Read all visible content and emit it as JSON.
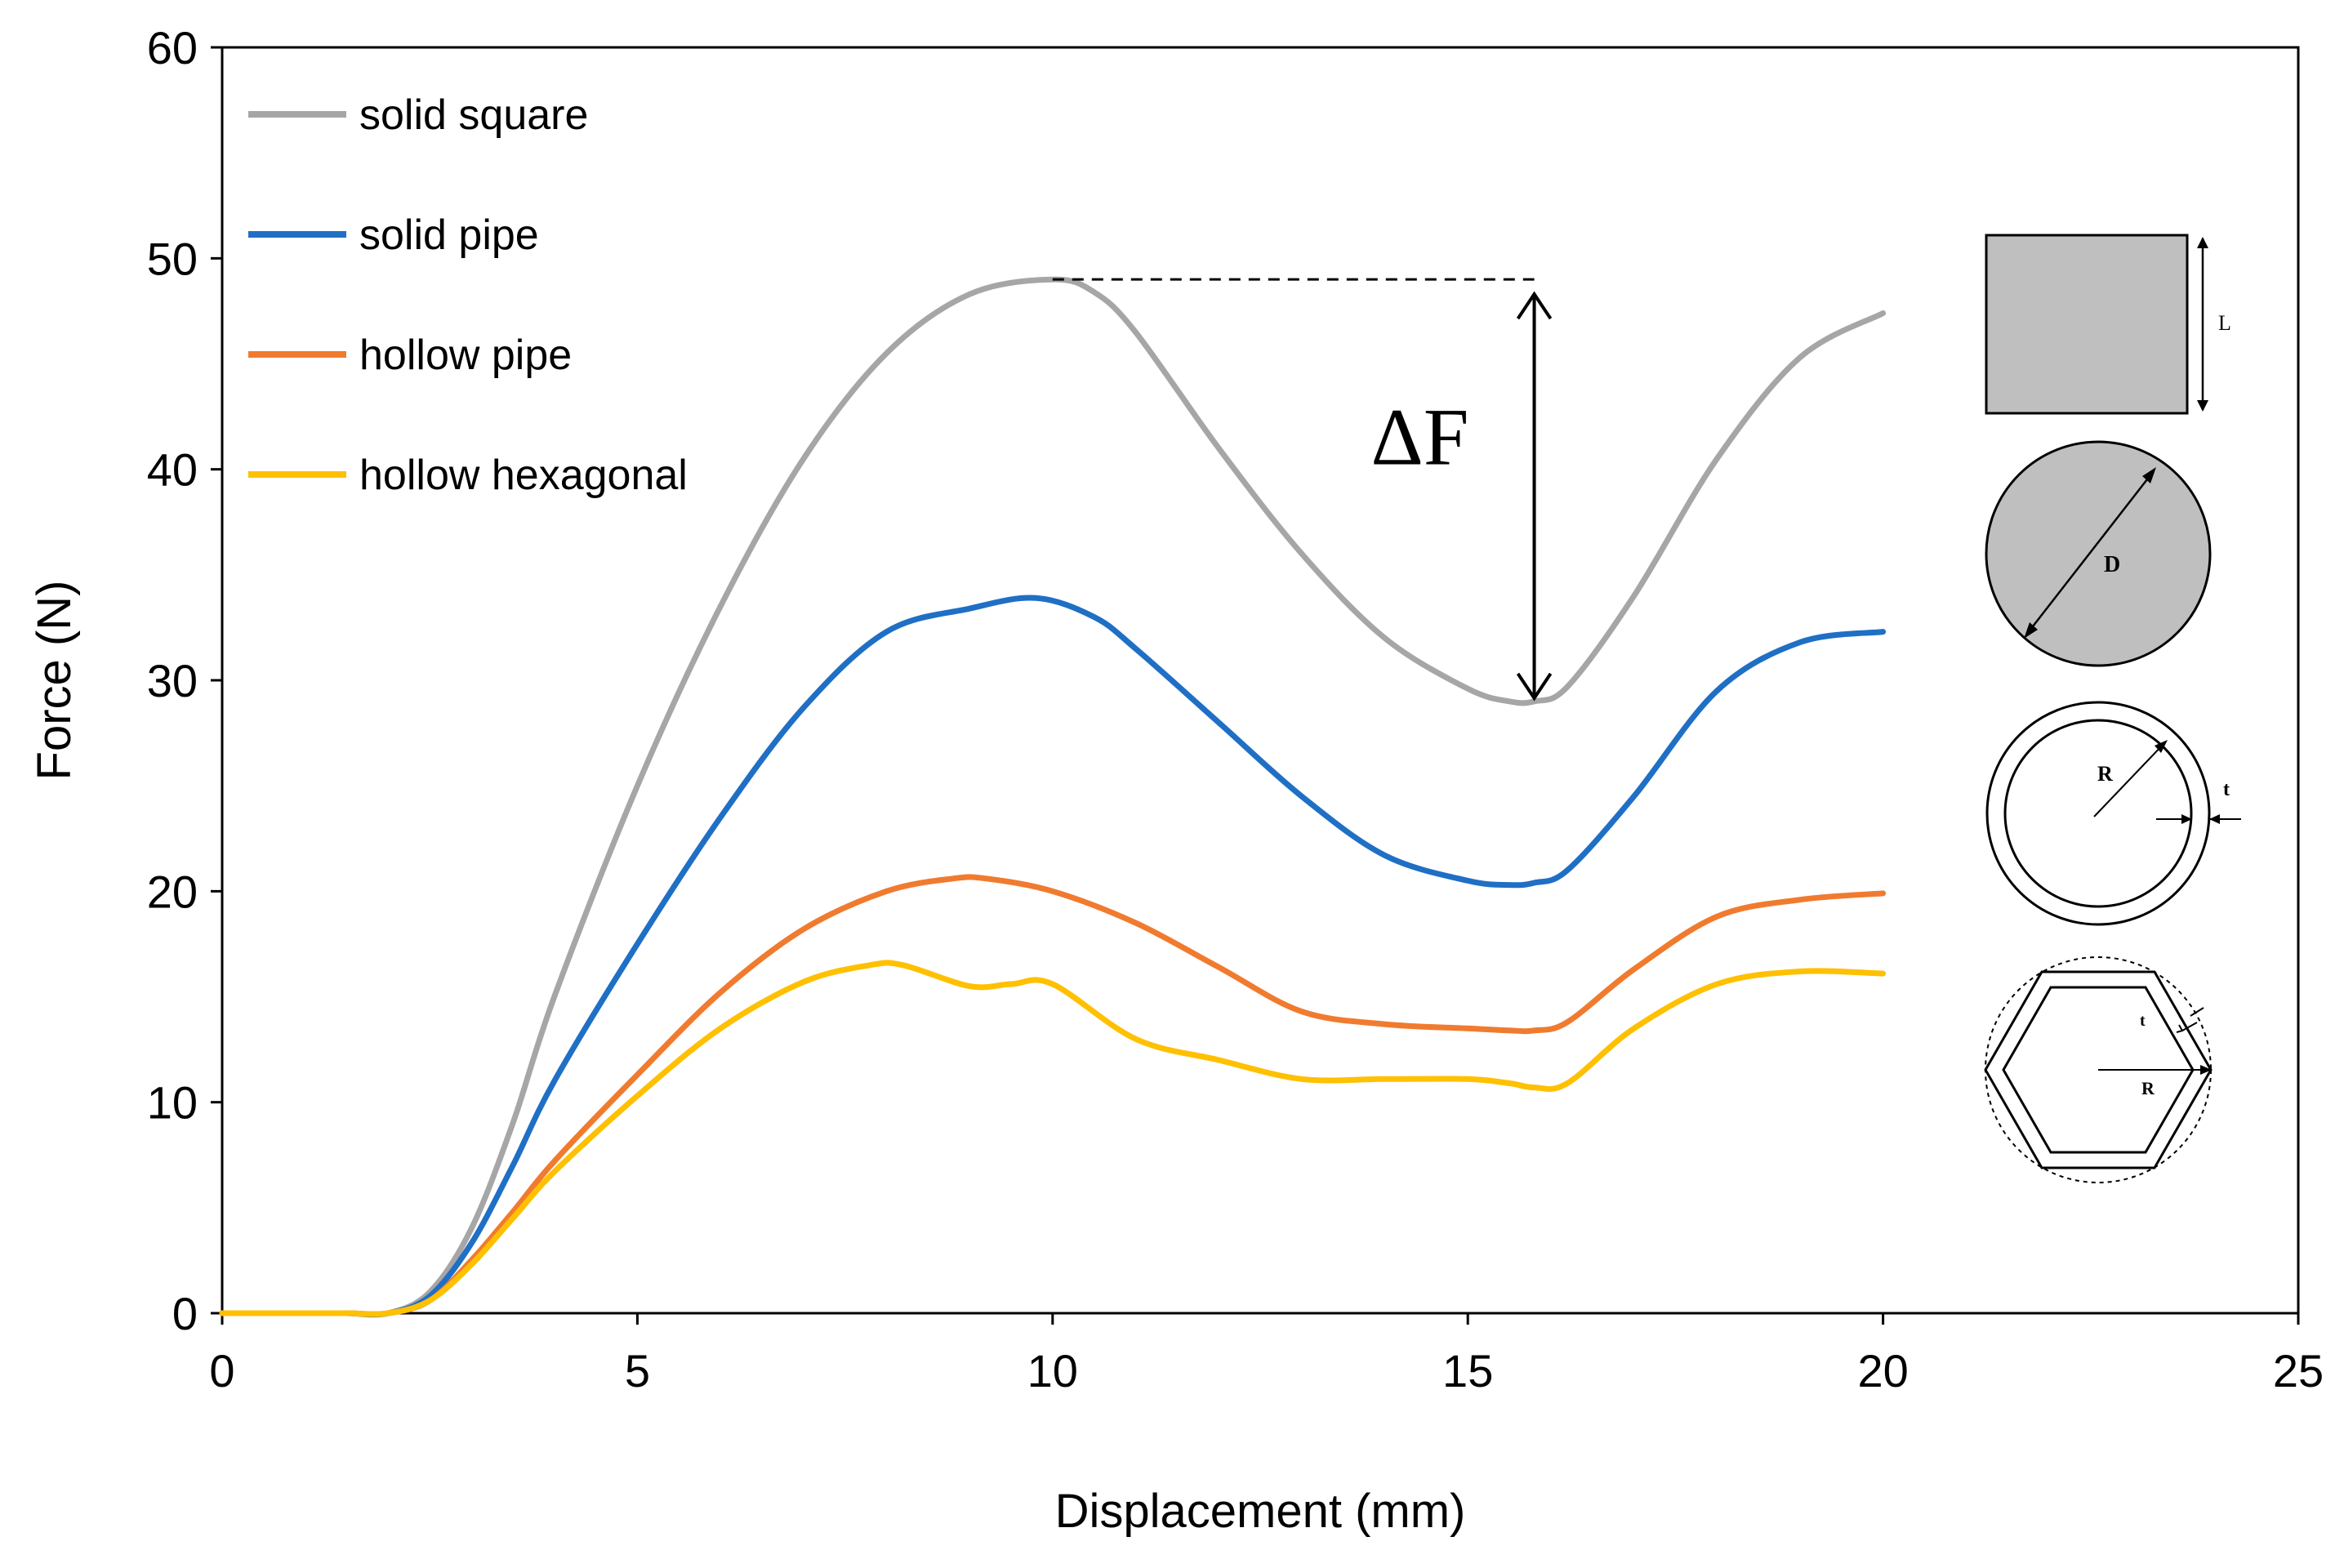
{
  "chart_data": {
    "type": "line",
    "title": "",
    "xlabel": "Displacement (mm)",
    "ylabel": "Force (N)",
    "xlim": [
      0,
      25
    ],
    "ylim": [
      0,
      60
    ],
    "xticks": [
      0,
      5,
      10,
      15,
      20,
      25
    ],
    "yticks": [
      0,
      10,
      20,
      30,
      40,
      50,
      60
    ],
    "grid": false,
    "legend_position": "top-left",
    "series": [
      {
        "name": "solid square",
        "color": "#a6a6a6",
        "x": [
          0,
          1,
          1.5,
          2,
          2.5,
          3,
          3.5,
          4,
          5,
          6,
          7,
          8,
          9,
          10,
          10.5,
          11,
          12,
          13,
          14,
          15,
          15.5,
          15.8,
          16.2,
          17,
          18,
          19,
          20
        ],
        "y": [
          0,
          0,
          0,
          0,
          1,
          4,
          9,
          15,
          25,
          33.5,
          40.5,
          45.5,
          48.3,
          49,
          48.4,
          46.5,
          41,
          36,
          32,
          29.6,
          29,
          29,
          29.7,
          34,
          40.5,
          45.3,
          47.4
        ]
      },
      {
        "name": "solid pipe",
        "color": "#1f6fc5",
        "x": [
          0,
          1,
          1.5,
          2,
          2.5,
          3,
          3.5,
          4,
          5,
          6,
          7,
          8,
          9,
          9.8,
          10.5,
          11,
          12,
          13,
          14,
          15,
          15.5,
          15.8,
          16.2,
          17,
          18,
          19,
          20
        ],
        "y": [
          0,
          0,
          0,
          0,
          0.8,
          3.3,
          7,
          11,
          17.5,
          23.5,
          28.7,
          32.3,
          33.4,
          33.9,
          33,
          31.5,
          28,
          24.5,
          21.7,
          20.5,
          20.3,
          20.4,
          21,
          24.5,
          29.5,
          31.8,
          32.3
        ]
      },
      {
        "name": "hollow pipe",
        "color": "#f07b2f",
        "x": [
          0,
          1,
          1.5,
          2,
          2.5,
          3,
          3.5,
          4,
          5,
          6,
          7,
          8,
          8.8,
          9.2,
          10,
          11,
          12,
          13,
          14,
          15,
          15.5,
          15.8,
          16.2,
          17,
          18,
          19,
          20
        ],
        "y": [
          0,
          0,
          0,
          0,
          0.6,
          2.5,
          4.8,
          7.2,
          11.3,
          15.2,
          18.2,
          20,
          20.6,
          20.6,
          20,
          18.5,
          16.4,
          14.3,
          13.7,
          13.5,
          13.4,
          13.4,
          13.8,
          16.3,
          18.8,
          19.6,
          19.9
        ]
      },
      {
        "name": "hollow hexagonal",
        "color": "#ffc000",
        "x": [
          0,
          1,
          1.5,
          2,
          2.5,
          3,
          3.5,
          4,
          5,
          6,
          7,
          7.8,
          8.2,
          9,
          9.5,
          10,
          11,
          12,
          13,
          14,
          15,
          15.5,
          15.8,
          16.2,
          17,
          18,
          19,
          20
        ],
        "y": [
          0,
          0,
          0,
          0,
          0.6,
          2.3,
          4.5,
          6.7,
          10.3,
          13.5,
          15.7,
          16.5,
          16.5,
          15.5,
          15.6,
          15.6,
          13,
          12,
          11.1,
          11.1,
          11.1,
          10.9,
          10.7,
          10.9,
          13.5,
          15.6,
          16.2,
          16.1
        ]
      }
    ],
    "annotation": {
      "label": "ΔF",
      "x": 15.8,
      "y_top": 49,
      "y_bottom": 29,
      "dashed_from_x": 10
    },
    "cross_sections": {
      "square": {
        "dim": "L",
        "fill": "#bfbfbf"
      },
      "solid_circle": {
        "dim": "D",
        "fill": "#bfbfbf"
      },
      "hollow_circle": {
        "radius_label": "R",
        "thickness_label": "t"
      },
      "hexagon": {
        "radius_label": "R",
        "thickness_label": "t"
      }
    }
  }
}
